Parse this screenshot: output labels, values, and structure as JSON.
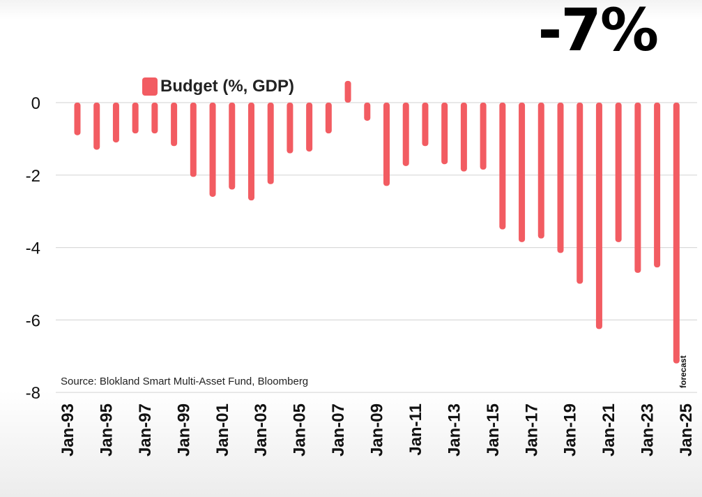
{
  "headline": "-7%",
  "source": "Source: Blokland Smart Multi-Asset Fund, Bloomberg",
  "forecast_note": "forecast",
  "colors": {
    "bar": "#f25c62",
    "grid": "#d9d9d9",
    "text": "#111111"
  },
  "chart_data": {
    "type": "bar",
    "title": "",
    "xlabel": "",
    "ylabel": "",
    "ylim": [
      -8,
      0.5
    ],
    "yticks": [
      0,
      -2,
      -4,
      -6,
      -8
    ],
    "grid": true,
    "legend_position": "top-left",
    "series": [
      {
        "name": "Budget (%, GDP)",
        "values": [
          -0.9,
          -1.3,
          -1.1,
          -0.85,
          -0.85,
          -1.2,
          -2.05,
          -2.6,
          -2.4,
          -2.7,
          -2.25,
          -1.4,
          -1.35,
          -0.85,
          0.6,
          -0.5,
          -2.3,
          -1.75,
          -1.2,
          -1.7,
          -1.9,
          -1.85,
          -3.5,
          -3.85,
          -3.75,
          -4.15,
          -5.0,
          -6.25,
          -3.85,
          -4.7,
          -4.55,
          -7.2
        ]
      }
    ],
    "x": [
      "1994",
      "1995",
      "1996",
      "1997",
      "1998",
      "1999",
      "2000",
      "2001",
      "2002",
      "2003",
      "2004",
      "2005",
      "2006",
      "2007",
      "2008",
      "2009",
      "2010",
      "2011",
      "2012",
      "2013",
      "2014",
      "2015",
      "2016",
      "2017",
      "2018",
      "2019",
      "2020",
      "2021",
      "2022",
      "2023",
      "2024",
      "2025"
    ],
    "xticks": [
      "Jan-93",
      "Jan-95",
      "Jan-97",
      "Jan-99",
      "Jan-01",
      "Jan-03",
      "Jan-05",
      "Jan-07",
      "Jan-09",
      "Jan-11",
      "Jan-13",
      "Jan-15",
      "Jan-17",
      "Jan-19",
      "Jan-21",
      "Jan-23",
      "Jan-25"
    ]
  }
}
